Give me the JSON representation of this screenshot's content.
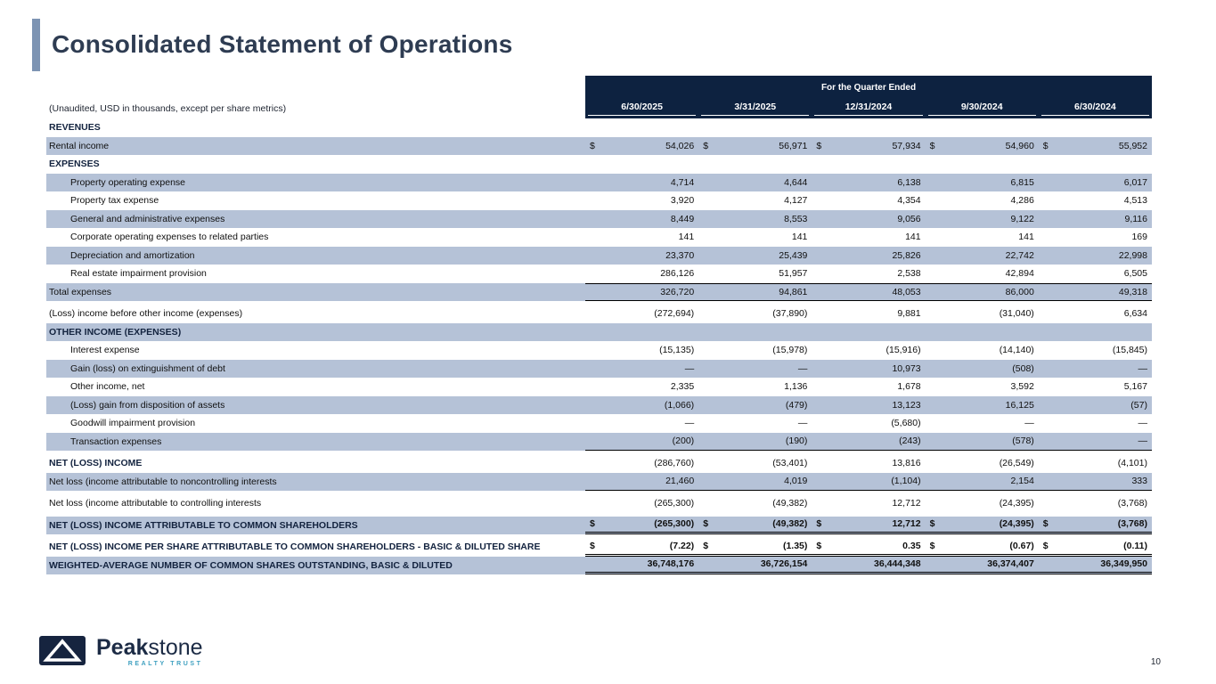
{
  "page": {
    "title": "Consolidated Statement of Operations",
    "page_number": "10"
  },
  "logo": {
    "brand_bold": "Peak",
    "brand_light": "stone",
    "subtitle": "REALTY TRUST"
  },
  "table": {
    "note": "(Unaudited, USD in thousands, except per share metrics)",
    "quarter_header": "For the Quarter Ended",
    "columns": [
      "6/30/2025",
      "3/31/2025",
      "12/31/2024",
      "9/30/2024",
      "6/30/2024"
    ],
    "rows": [
      {
        "label": "REVENUES",
        "section": true
      },
      {
        "label": "Rental income",
        "shaded": true,
        "dollar": true,
        "values": [
          "54,026",
          "56,971",
          "57,934",
          "54,960",
          "55,952"
        ]
      },
      {
        "label": "EXPENSES",
        "section": true
      },
      {
        "label": "Property operating expense",
        "indent": true,
        "shaded": true,
        "values": [
          "4,714",
          "4,644",
          "6,138",
          "6,815",
          "6,017"
        ]
      },
      {
        "label": "Property tax expense",
        "indent": true,
        "values": [
          "3,920",
          "4,127",
          "4,354",
          "4,286",
          "4,513"
        ]
      },
      {
        "label": "General and administrative expenses",
        "indent": true,
        "shaded": true,
        "values": [
          "8,449",
          "8,553",
          "9,056",
          "9,122",
          "9,116"
        ]
      },
      {
        "label": "Corporate operating expenses to related parties",
        "indent": true,
        "values": [
          "141",
          "141",
          "141",
          "141",
          "169"
        ]
      },
      {
        "label": "Depreciation and amortization",
        "indent": true,
        "shaded": true,
        "values": [
          "23,370",
          "25,439",
          "25,826",
          "22,742",
          "22,998"
        ]
      },
      {
        "label": "Real estate impairment provision",
        "indent": true,
        "values": [
          "286,126",
          "51,957",
          "2,538",
          "42,894",
          "6,505"
        ]
      },
      {
        "label": "Total expenses",
        "shaded": true,
        "rule_top": true,
        "rule_bottom": "single",
        "values": [
          "326,720",
          "94,861",
          "48,053",
          "86,000",
          "49,318"
        ]
      },
      {
        "label": "(Loss) income before other income (expenses)",
        "gap": true,
        "values": [
          "(272,694)",
          "(37,890)",
          "9,881",
          "(31,040)",
          "6,634"
        ]
      },
      {
        "label": "OTHER INCOME (EXPENSES)",
        "section": true,
        "shaded": true
      },
      {
        "label": "Interest expense",
        "indent": true,
        "values": [
          "(15,135)",
          "(15,978)",
          "(15,916)",
          "(14,140)",
          "(15,845)"
        ]
      },
      {
        "label": "Gain (loss) on extinguishment of debt",
        "indent": true,
        "shaded": true,
        "values": [
          "—",
          "—",
          "10,973",
          "(508)",
          "—"
        ]
      },
      {
        "label": "Other income, net",
        "indent": true,
        "values": [
          "2,335",
          "1,136",
          "1,678",
          "3,592",
          "5,167"
        ]
      },
      {
        "label": "(Loss) gain from disposition of assets",
        "indent": true,
        "shaded": true,
        "values": [
          "(1,066)",
          "(479)",
          "13,123",
          "16,125",
          "(57)"
        ]
      },
      {
        "label": "Goodwill impairment provision",
        "indent": true,
        "values": [
          "—",
          "—",
          "(5,680)",
          "—",
          "—"
        ]
      },
      {
        "label": "Transaction expenses",
        "indent": true,
        "shaded": true,
        "rule_bottom": "single",
        "values": [
          "(200)",
          "(190)",
          "(243)",
          "(578)",
          "—"
        ]
      },
      {
        "label": "NET (LOSS) INCOME",
        "strong": true,
        "gap": true,
        "values": [
          "(286,760)",
          "(53,401)",
          "13,816",
          "(26,549)",
          "(4,101)"
        ]
      },
      {
        "label": "Net loss (income attributable to noncontrolling interests",
        "shaded": true,
        "rule_bottom": "single",
        "values": [
          "21,460",
          "4,019",
          "(1,104)",
          "2,154",
          "333"
        ]
      },
      {
        "label": "Net loss (income attributable to controlling interests",
        "gap": true,
        "values": [
          "(265,300)",
          "(49,382)",
          "12,712",
          "(24,395)",
          "(3,768)"
        ]
      },
      {
        "label": "NET (LOSS) INCOME ATTRIBUTABLE TO COMMON SHAREHOLDERS",
        "strong": true,
        "shaded": true,
        "dollar": true,
        "bold_values": true,
        "gap": true,
        "rule_bottom": "double",
        "values": [
          "(265,300)",
          "(49,382)",
          "12,712",
          "(24,395)",
          "(3,768)"
        ]
      },
      {
        "label": "NET (LOSS) INCOME PER SHARE ATTRIBUTABLE TO COMMON SHAREHOLDERS - BASIC & DILUTED SHARE",
        "strong": true,
        "dollar": true,
        "bold_values": true,
        "gap": true,
        "rule_bottom": "double",
        "values": [
          "(7.22)",
          "(1.35)",
          "0.35",
          "(0.67)",
          "(0.11)"
        ]
      },
      {
        "label": "WEIGHTED-AVERAGE NUMBER OF COMMON SHARES OUTSTANDING, BASIC & DILUTED",
        "strong": true,
        "shaded": true,
        "bold_values": true,
        "rule_bottom": "double",
        "values": [
          "36,748,176",
          "36,726,154",
          "36,444,348",
          "36,374,407",
          "36,349,950"
        ]
      }
    ]
  }
}
